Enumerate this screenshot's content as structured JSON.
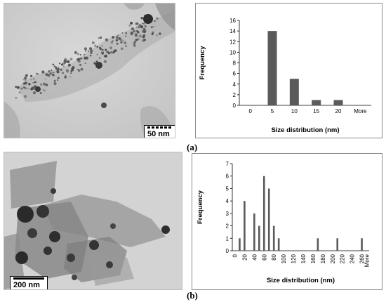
{
  "panel_a": {
    "label": "(a)",
    "scale_bar": "50 nm"
  },
  "panel_b": {
    "label": "(b)",
    "scale_bar": "200 nm"
  },
  "chart_data": [
    {
      "type": "bar",
      "title": "",
      "xlabel": "Size distribution (nm)",
      "ylabel": "Frequency",
      "categories": [
        "0",
        "5",
        "10",
        "15",
        "20",
        "More"
      ],
      "values": [
        0,
        14,
        5,
        1,
        1,
        0
      ],
      "ylim": [
        0,
        16
      ],
      "yticks": [
        "0",
        "2",
        "4",
        "6",
        "8",
        "10",
        "12",
        "14",
        "16"
      ],
      "grid": false,
      "bar_color": "#5a5a5a"
    },
    {
      "type": "bar",
      "title": "",
      "xlabel": "Size distribution (nm)",
      "ylabel": "Frequency",
      "categories": [
        "0",
        "10",
        "20",
        "30",
        "40",
        "50",
        "60",
        "70",
        "80",
        "90",
        "100",
        "110",
        "120",
        "130",
        "140",
        "150",
        "160",
        "170",
        "180",
        "190",
        "200",
        "210",
        "220",
        "230",
        "240",
        "250",
        "260",
        "More"
      ],
      "values": [
        0,
        1,
        4,
        0,
        3,
        2,
        6,
        5,
        2,
        1,
        0,
        0,
        0,
        0,
        0,
        0,
        0,
        1,
        0,
        0,
        0,
        1,
        0,
        0,
        0,
        0,
        1,
        0
      ],
      "xtick_labels": [
        "0",
        "20",
        "40",
        "60",
        "80",
        "100",
        "120",
        "140",
        "160",
        "180",
        "200",
        "220",
        "240",
        "260",
        "More"
      ],
      "ylim": [
        0,
        7
      ],
      "yticks": [
        "0",
        "1",
        "2",
        "3",
        "4",
        "5",
        "6",
        "7"
      ],
      "grid": false,
      "bar_color": "#5a5a5a"
    }
  ]
}
